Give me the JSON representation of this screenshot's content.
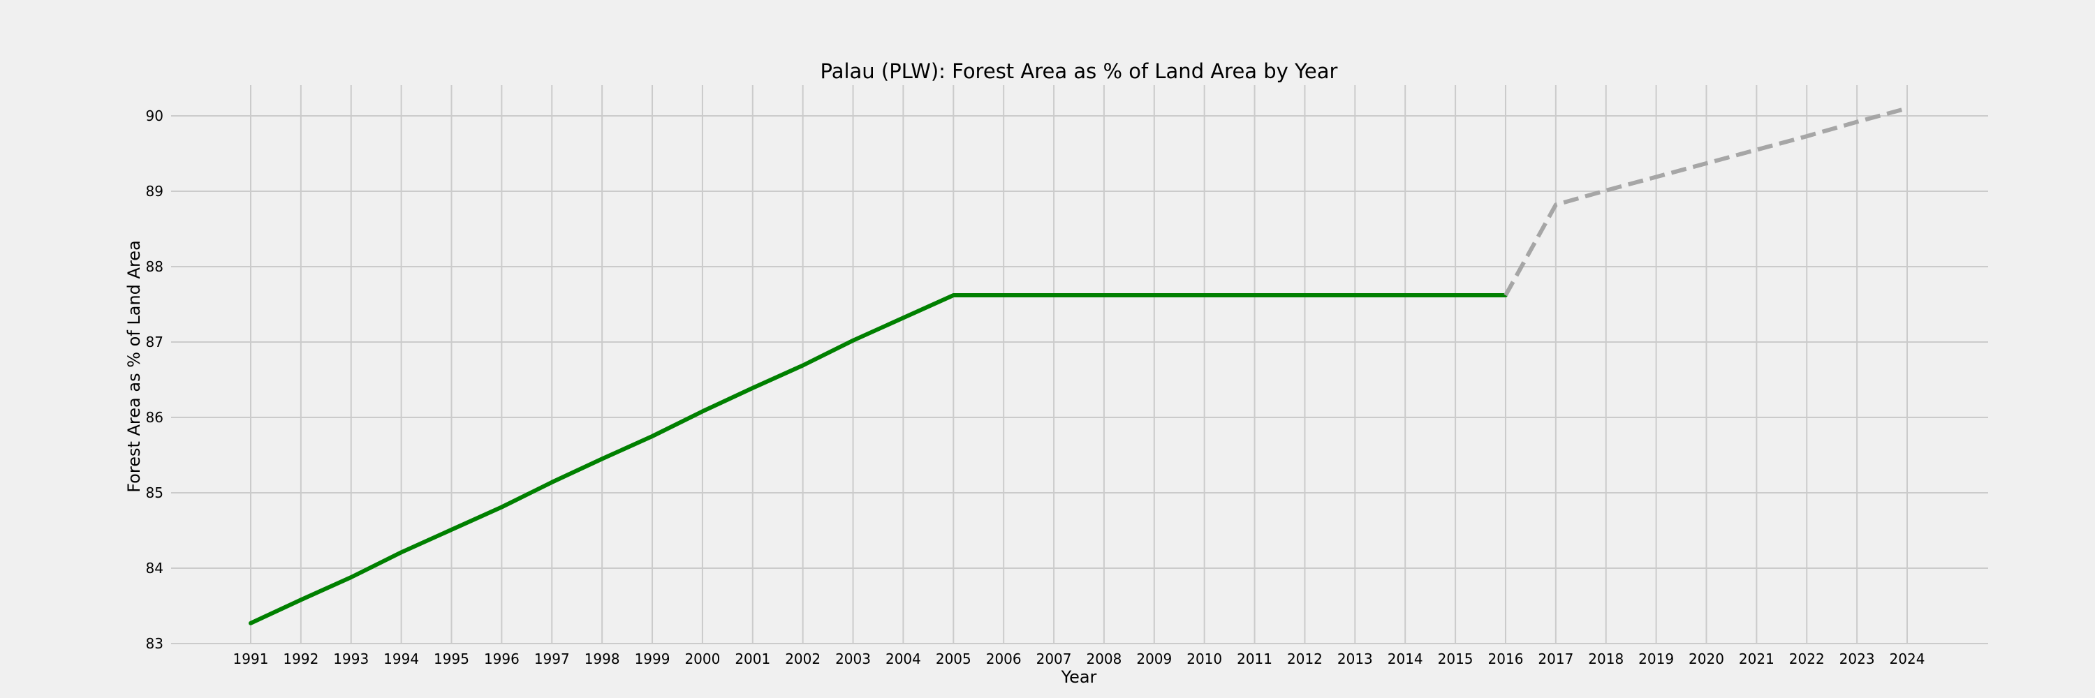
{
  "chart_data": {
    "type": "line",
    "title": "Palau (PLW): Forest Area as % of Land Area by Year",
    "xlabel": "Year",
    "ylabel": "Forest Area as % of Land Area",
    "ylim": [
      83,
      90
    ],
    "y_ticks": [
      83,
      84,
      85,
      86,
      87,
      88,
      89,
      90
    ],
    "x_ticks": [
      1991,
      1992,
      1993,
      1994,
      1995,
      1996,
      1997,
      1998,
      1999,
      2000,
      2001,
      2002,
      2003,
      2004,
      2005,
      2006,
      2007,
      2008,
      2009,
      2010,
      2011,
      2012,
      2013,
      2014,
      2015,
      2016,
      2017,
      2018,
      2019,
      2020,
      2021,
      2022,
      2023,
      2024
    ],
    "grid": true,
    "series": [
      {
        "style": "solid",
        "color": "#008000",
        "x": [
          1991,
          1992,
          1993,
          1994,
          1995,
          1996,
          1997,
          1998,
          1999,
          2000,
          2001,
          2002,
          2003,
          2004,
          2005,
          2006,
          2007,
          2008,
          2009,
          2010,
          2011,
          2012,
          2013,
          2014,
          2015,
          2016
        ],
        "y": [
          83.27,
          83.58,
          83.88,
          84.21,
          84.51,
          84.81,
          85.14,
          85.45,
          85.75,
          86.08,
          86.39,
          86.69,
          87.02,
          87.32,
          87.62,
          87.62,
          87.62,
          87.62,
          87.62,
          87.62,
          87.62,
          87.62,
          87.62,
          87.62,
          87.62,
          87.62
        ]
      },
      {
        "style": "dashed",
        "color": "#a6a6a6",
        "x": [
          2016,
          2017,
          2018,
          2019,
          2020,
          2021,
          2022,
          2023,
          2024
        ],
        "y": [
          87.62,
          88.82,
          89.01,
          89.19,
          89.37,
          89.55,
          89.73,
          89.92,
          90.1
        ]
      }
    ]
  }
}
